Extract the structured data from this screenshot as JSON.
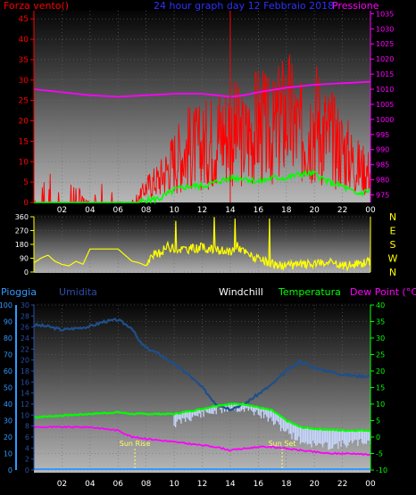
{
  "chart_data": [
    {
      "type": "line",
      "title": "24 hour graph day 12 Febbraio 2018",
      "left_axis_label": "Forza vento()",
      "right_axis_label": "Pressione",
      "x_ticks": [
        "02",
        "04",
        "06",
        "08",
        "10",
        "12",
        "14",
        "16",
        "18",
        "20",
        "22",
        "00"
      ],
      "ylim_left": [
        0,
        47
      ],
      "yticks_left": [
        0,
        5,
        10,
        15,
        20,
        25,
        30,
        35,
        40,
        45
      ],
      "ylim_right": [
        972.5,
        1036
      ],
      "yticks_right": [
        975,
        980,
        985,
        990,
        995,
        1000,
        1005,
        1010,
        1015,
        1020,
        1025,
        1030,
        1035
      ],
      "colors": {
        "wind_gust": "#ff0000",
        "wind_avg": "#00ff00",
        "pressure": "#ff00ff",
        "left_axis": "#ff0000",
        "right_axis": "#ff00ff",
        "title": "#3030ff"
      },
      "series": [
        {
          "name": "Pressione",
          "axis": "right",
          "x": [
            0,
            2,
            4,
            6,
            8,
            10,
            12,
            13,
            14,
            15,
            16,
            18,
            20,
            22,
            24
          ],
          "y": [
            1010,
            1009,
            1008,
            1007.5,
            1008,
            1008.5,
            1008.5,
            1008,
            1007.5,
            1008,
            1009,
            1010.5,
            1011.5,
            1012,
            1012.5
          ]
        },
        {
          "axis": "left",
          "x": [
            0,
            6,
            7.5,
            8,
            9,
            10,
            11,
            12,
            13,
            14,
            15,
            16,
            17,
            18,
            19,
            20,
            21,
            22,
            23,
            24
          ],
          "y": [
            0,
            0,
            0,
            0.5,
            1,
            3,
            4,
            4,
            5,
            6,
            6,
            5,
            6,
            6,
            7,
            7,
            5,
            4,
            2,
            3
          ]
        },
        {
          "axis": "left",
          "x": [
            0,
            1,
            2,
            3,
            4,
            5,
            6,
            7,
            7.5,
            8,
            9,
            10,
            11,
            12,
            13,
            14,
            15,
            16,
            17,
            18,
            19,
            20,
            21,
            22,
            23,
            24
          ],
          "y": [
            0,
            5,
            3,
            3,
            0,
            4,
            0,
            1,
            2,
            5,
            8,
            14,
            18,
            18,
            22,
            24,
            20,
            26,
            22,
            30,
            22,
            28,
            22,
            18,
            12,
            10
          ]
        }
      ],
      "cursor_x": 14
    },
    {
      "type": "line",
      "title": "",
      "x_ticks": [
        "02",
        "04",
        "06",
        "08",
        "10",
        "12",
        "14",
        "16",
        "18",
        "20",
        "22",
        "00"
      ],
      "ylim": [
        0,
        360
      ],
      "yticks": [
        0,
        90,
        180,
        270,
        360
      ],
      "compass": [
        "N",
        "W",
        "S",
        "E",
        "N"
      ],
      "colors": {
        "direction": "#ffff00",
        "compass": "#ffff00"
      },
      "series": [
        {
          "axis": "left",
          "x": [
            0,
            0.5,
            1,
            1.5,
            2,
            2.5,
            3,
            3.5,
            4,
            5,
            6,
            6.5,
            7,
            7.5,
            8,
            8.5,
            9,
            9.5,
            10,
            11,
            12,
            13,
            14,
            14.5,
            15,
            16,
            17,
            18,
            19,
            20,
            21,
            22,
            23,
            24
          ],
          "y": [
            60,
            90,
            110,
            70,
            50,
            40,
            70,
            50,
            150,
            150,
            150,
            110,
            70,
            60,
            40,
            110,
            120,
            170,
            150,
            150,
            160,
            140,
            130,
            170,
            130,
            80,
            50,
            40,
            50,
            50,
            60,
            40,
            50,
            70
          ]
        }
      ]
    },
    {
      "type": "line",
      "title": "",
      "legend": [
        "Pioggia",
        "Umidita",
        "Windchill",
        "Temperatura",
        "Dew Point (°C)"
      ],
      "x_ticks": [
        "02",
        "04",
        "06",
        "08",
        "10",
        "12",
        "14",
        "16",
        "18",
        "20",
        "22",
        "00"
      ],
      "axis_rain": {
        "label": "Pioggia",
        "ticks": [
          0,
          10,
          20,
          30,
          40,
          50,
          60,
          70,
          80,
          90,
          100
        ]
      },
      "axis_humidity": {
        "label": "Umidita",
        "ticks": [
          0,
          2,
          4,
          6,
          8,
          10,
          12,
          14,
          16,
          18,
          20,
          22,
          24,
          26,
          28,
          30
        ]
      },
      "axis_temp": {
        "label": "Temperatura",
        "ylim": [
          -10,
          40
        ],
        "ticks": [
          -10,
          -5,
          0,
          5,
          10,
          15,
          20,
          25,
          30,
          35,
          40
        ]
      },
      "annotations": [
        {
          "text": "Sun Rise",
          "x": 7.2
        },
        {
          "text": "Sun Set",
          "x": 17.7
        }
      ],
      "colors": {
        "temperature": "#00ff00",
        "humidity": "#1e4f8c",
        "dewpoint": "#ff00ff",
        "windchill": "#c8d8ff",
        "rain": "#3399ff",
        "rain_axis": "#3399ff",
        "humidity_axis": "#2a4fa8",
        "temp_axis": "#00ff00",
        "windchill_label": "#ffffff",
        "dew_label": "#ff00ff"
      },
      "series": [
        {
          "name": "Umidita",
          "axis": "temp",
          "x": [
            0,
            1,
            2,
            3,
            4,
            5,
            6,
            7,
            7.5,
            8,
            9,
            10,
            11,
            12,
            13,
            14,
            15,
            16,
            17,
            18,
            19,
            20,
            21,
            22,
            23,
            24
          ],
          "y": [
            34,
            33.5,
            32.5,
            33,
            33.5,
            35,
            35.5,
            33,
            29,
            27,
            25,
            22,
            19,
            15,
            10,
            8.5,
            10,
            13,
            16,
            20,
            23,
            21,
            20,
            19,
            18.5,
            18.5
          ]
        },
        {
          "name": "Temperatura",
          "axis": "temp",
          "x": [
            0,
            2,
            4,
            6,
            7,
            8,
            10,
            12,
            13,
            14,
            15,
            16,
            17,
            18,
            19,
            20,
            22,
            24
          ],
          "y": [
            6,
            6.5,
            7,
            7.5,
            7,
            7,
            7,
            8.5,
            9.5,
            10,
            10,
            9,
            8,
            5,
            3,
            2.5,
            2,
            2
          ]
        },
        {
          "name": "Windchill",
          "axis": "temp",
          "x": [
            10,
            11,
            12,
            13,
            14,
            15,
            16,
            17,
            18,
            19,
            20,
            21,
            22,
            23,
            24
          ],
          "y": [
            5,
            7,
            8,
            9,
            10,
            9.5,
            8.5,
            6,
            3,
            0,
            -1,
            -1.5,
            -1,
            -0.5,
            0
          ]
        },
        {
          "name": "Dew Point (°C)",
          "axis": "temp",
          "x": [
            0,
            2,
            4,
            6,
            7,
            8,
            9,
            10,
            11,
            12,
            13,
            14,
            15,
            16,
            17,
            18,
            19,
            20,
            21,
            22,
            23,
            24
          ],
          "y": [
            3,
            3,
            3,
            2,
            0,
            -0.5,
            -1,
            -1.5,
            -2,
            -2.5,
            -3,
            -4,
            -3.5,
            -3,
            -3,
            -3.5,
            -4,
            -4.5,
            -5,
            -5,
            -5,
            -5.5
          ]
        },
        {
          "name": "Pioggia",
          "axis": "rain",
          "x": [
            0,
            24
          ],
          "y": [
            0,
            0
          ]
        }
      ]
    }
  ]
}
